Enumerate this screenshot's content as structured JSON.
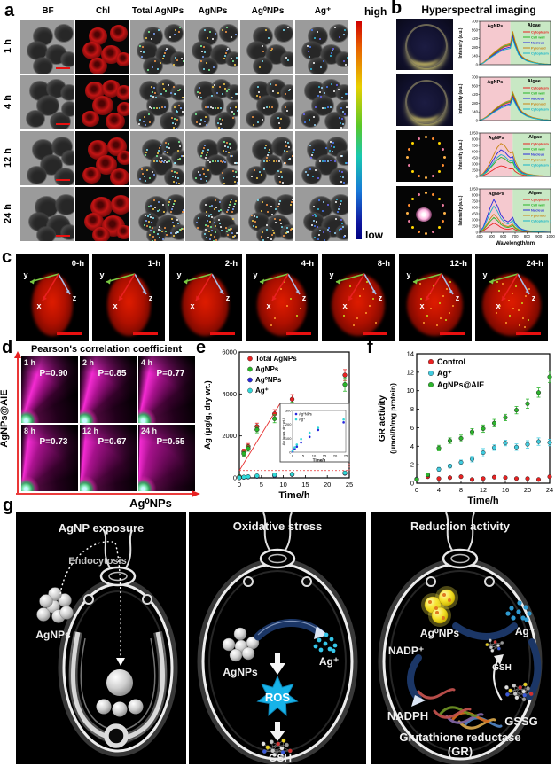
{
  "figure": {
    "panel_a": {
      "label": "a",
      "columns": [
        "BF",
        "Chl",
        "Total AgNPs",
        "AgNPs",
        "Ag⁰NPs",
        "Ag⁺"
      ],
      "rows": [
        "1 h",
        "4 h",
        "12 h",
        "24 h"
      ],
      "colorbar": {
        "high": "high",
        "low": "low"
      }
    },
    "panel_b": {
      "label": "b",
      "title": "Hyperspectral imaging"
    },
    "panel_c": {
      "label": "c",
      "times": [
        "0-h",
        "1-h",
        "2-h",
        "4-h",
        "8-h",
        "12-h",
        "24-h"
      ],
      "axis_x": "x",
      "axis_y": "y",
      "axis_z": "z"
    },
    "panel_d": {
      "label": "d",
      "title": "Pearson's correlation coefficient",
      "ylabel": "AgNPs@AIE",
      "xlabel": "Ag⁰NPs",
      "cells": [
        {
          "time": "1 h",
          "p": "P=0.90"
        },
        {
          "time": "2 h",
          "p": "P=0.85"
        },
        {
          "time": "4 h",
          "p": "P=0.77"
        },
        {
          "time": "8 h",
          "p": "P=0.73"
        },
        {
          "time": "12 h",
          "p": "P=0.67"
        },
        {
          "time": "24 h",
          "p": "P=0.55"
        }
      ]
    },
    "panel_e": {
      "label": "e"
    },
    "panel_f": {
      "label": "f"
    },
    "panel_g": {
      "label": "g",
      "cell_1": {
        "title": "AgNP exposure",
        "endocytosis": "Endocytosis",
        "agnps": "AgNPs"
      },
      "cell_2": {
        "title": "Oxidative stress",
        "agnps": "AgNPs",
        "ag_ion": "Ag⁺",
        "ros": "ROS",
        "gsh": "GSH"
      },
      "cell_3": {
        "title": "Reduction activity",
        "ag0nps": "Ag⁰NPs",
        "ag_ion": "Ag⁺",
        "nadp": "NADP⁺",
        "nadph": "NADPH",
        "gsh": "GSH",
        "gssg": "GSSG",
        "gr_line1": "Glutathione reductase",
        "gr_line2": "(GR)"
      }
    }
  },
  "chart_data": {
    "spectra": {
      "type": "line",
      "title": "Hyperspectral imaging",
      "ylabel": "Intensity (a.u.)",
      "xlabel": "Wavelength/nm",
      "xlim": [
        400,
        1000
      ],
      "xticks": [
        400,
        500,
        600,
        700,
        800,
        900,
        1000
      ],
      "region_labels": [
        "AgNPs",
        "Algae"
      ],
      "legend": [
        "Cytoplasm",
        "Cell wall",
        "Nucleus",
        "Pyrenoid",
        "Cytoplasm 1"
      ],
      "colors": {
        "Cytoplasm": "#e82222",
        "Cell wall": "#28b428",
        "Nucleus": "#2828dc",
        "Pyrenoid": "#c88414",
        "Cytoplasm 1": "#14b4c8"
      },
      "x": [
        400,
        430,
        460,
        490,
        520,
        550,
        580,
        610,
        640,
        660,
        680,
        700,
        730,
        760,
        800,
        850,
        900,
        950,
        1000
      ],
      "rows": [
        {
          "ylim": [
            0,
            700
          ],
          "yticks": [
            0,
            140,
            280,
            420,
            560,
            700
          ],
          "boundary_nm": 660,
          "series": {
            "Cytoplasm": [
              5,
              30,
              80,
              130,
              175,
              215,
              255,
              285,
              300,
              310,
              490,
              350,
              190,
              120,
              70,
              40,
              20,
              10,
              5
            ],
            "Cell wall": [
              5,
              32,
              84,
              137,
              184,
              226,
              268,
              299,
              315,
              326,
              515,
              368,
              200,
              126,
              74,
              42,
              21,
              11,
              5
            ],
            "Nucleus": [
              5,
              28,
              74,
              120,
              161,
              198,
              235,
              262,
              276,
              285,
              451,
              322,
              175,
              110,
              64,
              37,
              18,
              9,
              5
            ],
            "Pyrenoid": [
              6,
              33,
              88,
              143,
              193,
              237,
              281,
              314,
              330,
              341,
              539,
              385,
              209,
              132,
              77,
              44,
              22,
              11,
              6
            ],
            "Cytoplasm 1": [
              4,
              26,
              68,
              111,
              149,
              183,
              217,
              242,
              255,
              264,
              417,
              298,
              162,
              102,
              60,
              34,
              17,
              9,
              4
            ]
          }
        },
        {
          "ylim": [
            0,
            700
          ],
          "yticks": [
            0,
            140,
            280,
            420,
            560,
            700
          ],
          "boundary_nm": 660,
          "series": {
            "Cytoplasm": [
              5,
              25,
              60,
              105,
              155,
              195,
              235,
              265,
              285,
              295,
              415,
              330,
              200,
              130,
              80,
              45,
              25,
              12,
              5
            ],
            "Cell wall": [
              5,
              26,
              63,
              110,
              163,
              205,
              247,
              278,
              299,
              310,
              436,
              347,
              210,
              137,
              84,
              47,
              26,
              13,
              5
            ],
            "Nucleus": [
              5,
              23,
              55,
              97,
              143,
              179,
              216,
              244,
              262,
              271,
              382,
              304,
              184,
              120,
              74,
              41,
              23,
              11,
              5
            ],
            "Pyrenoid": [
              6,
              28,
              66,
              116,
              171,
              215,
              259,
              292,
              314,
              325,
              457,
              363,
              220,
              143,
              88,
              50,
              28,
              13,
              6
            ],
            "Cytoplasm 1": [
              4,
              21,
              51,
              89,
              132,
              166,
              200,
              225,
              242,
              251,
              353,
              281,
              170,
              111,
              68,
              38,
              21,
              10,
              4
            ]
          }
        },
        {
          "ylim": [
            0,
            1050
          ],
          "yticks": [
            0,
            150,
            300,
            450,
            600,
            750,
            900,
            1050
          ],
          "boundary_nm": 680,
          "series": {
            "Cytoplasm": [
              4,
              24,
              60,
              112,
              168,
              224,
              256,
              240,
              200,
              180,
              192,
              120,
              64,
              36,
              20,
              12,
              6,
              3,
              2
            ],
            "Cell wall": [
              7,
              43,
              108,
              202,
              302,
              403,
              461,
              432,
              360,
              324,
              346,
              216,
              115,
              65,
              36,
              22,
              11,
              6,
              4
            ],
            "Nucleus": [
              10,
              60,
              150,
              280,
              420,
              560,
              640,
              600,
              500,
              450,
              480,
              300,
              160,
              90,
              50,
              30,
              15,
              8,
              5
            ],
            "Pyrenoid": [
              13,
              75,
              188,
              350,
              525,
              700,
              800,
              750,
              625,
              563,
              600,
              375,
              200,
              113,
              63,
              38,
              19,
              10,
              6
            ],
            "Cytoplasm 1": [
              8,
              49,
              123,
              230,
              344,
              459,
              525,
              492,
              410,
              369,
              394,
              246,
              131,
              74,
              41,
              25,
              12,
              7,
              4
            ]
          }
        },
        {
          "ylim": [
            0,
            1050
          ],
          "yticks": [
            0,
            150,
            300,
            450,
            600,
            750,
            900,
            1050
          ],
          "boundary_nm": 680,
          "series": {
            "Cytoplasm": [
              6,
              34,
              98,
              168,
              221,
              179,
              118,
              84,
              70,
              84,
              101,
              62,
              34,
              20,
              11,
              7,
              3,
              2,
              1
            ],
            "Cell wall": [
              9,
              54,
              158,
              270,
              356,
              288,
              189,
              135,
              113,
              135,
              162,
              99,
              54,
              32,
              18,
              11,
              5,
              3,
              1
            ],
            "Nucleus": [
              20,
              120,
              350,
              600,
              790,
              640,
              420,
              300,
              250,
              300,
              360,
              220,
              120,
              70,
              40,
              25,
              12,
              6,
              3
            ],
            "Pyrenoid": [
              11,
              66,
              193,
              330,
              435,
              352,
              231,
              165,
              138,
              165,
              198,
              121,
              66,
              39,
              22,
              14,
              7,
              3,
              2
            ],
            "Cytoplasm 1": [
              16,
              96,
              280,
              480,
              632,
              512,
              336,
              240,
              200,
              240,
              288,
              176,
              96,
              56,
              32,
              20,
              10,
              5,
              2
            ]
          }
        }
      ]
    },
    "silver_uptake": {
      "type": "scatter",
      "ylabel": "Ag (μg/g, dry wt.)",
      "xlabel": "Time/h",
      "ylim": [
        0,
        6000
      ],
      "yticks": [
        0,
        2000,
        4000,
        6000
      ],
      "xlim": [
        0,
        25
      ],
      "xticks": [
        0,
        5,
        10,
        15,
        20,
        25
      ],
      "x": [
        0,
        1,
        2,
        4,
        8,
        12,
        24
      ],
      "series": [
        {
          "name": "Total AgNPs",
          "color": "#e82222",
          "values": [
            60,
            1250,
            1500,
            2450,
            3050,
            3750,
            4900
          ],
          "err": [
            40,
            120,
            140,
            160,
            200,
            220,
            260
          ]
        },
        {
          "name": "AgNPs",
          "color": "#28b428",
          "values": [
            50,
            1150,
            1400,
            2300,
            2820,
            3400,
            4450
          ],
          "err": [
            40,
            110,
            130,
            150,
            190,
            210,
            320
          ]
        },
        {
          "name": "Ag⁰NPs",
          "color": "#2828dc",
          "values": [
            5,
            25,
            40,
            70,
            110,
            160,
            215
          ],
          "err": [
            4,
            8,
            10,
            12,
            15,
            18,
            22
          ]
        },
        {
          "name": "Ag⁺",
          "color": "#30d8d8",
          "values": [
            10,
            35,
            55,
            95,
            140,
            175,
            235
          ],
          "err": [
            4,
            8,
            10,
            12,
            15,
            18,
            22
          ]
        }
      ],
      "inset": {
        "ylabel": "Ag (μg/g, dry wt.)",
        "xlabel": "Time/h",
        "ylim": [
          0,
          300
        ],
        "yticks": [
          0,
          100,
          200,
          300
        ],
        "xticks": [
          0,
          5,
          10,
          15,
          20,
          25
        ],
        "series": [
          "Ag⁰NPs",
          "Ag⁺"
        ]
      }
    },
    "gr_activity": {
      "type": "scatter",
      "ylabel": "GR activity (μmol/h/mg protein)",
      "ylabel_line1": "GR activity",
      "ylabel_line2": "(μmol/h/mg protein)",
      "xlabel": "Time/h",
      "ylim": [
        0,
        14
      ],
      "yticks": [
        0,
        2,
        4,
        6,
        8,
        10,
        12,
        14
      ],
      "xlim": [
        0,
        24
      ],
      "xticks": [
        0,
        4,
        8,
        12,
        16,
        20,
        24
      ],
      "x": [
        0,
        2,
        4,
        6,
        8,
        10,
        12,
        14,
        16,
        18,
        20,
        22,
        24
      ],
      "series": [
        {
          "name": "Control",
          "color": "#e82222",
          "values": [
            0.45,
            0.7,
            0.5,
            0.6,
            0.7,
            0.4,
            0.5,
            0.65,
            0.6,
            0.5,
            0.5,
            0.4,
            0.7
          ],
          "err": [
            0.12,
            0.12,
            0.1,
            0.12,
            0.12,
            0.1,
            0.1,
            0.12,
            0.12,
            0.1,
            0.1,
            0.1,
            0.12
          ]
        },
        {
          "name": "Ag⁺",
          "color": "#40cce0",
          "values": [
            0.45,
            0.9,
            1.5,
            1.85,
            2.25,
            2.6,
            3.3,
            3.85,
            4.35,
            3.9,
            4.2,
            4.5,
            4.4
          ],
          "err": [
            0.1,
            0.15,
            0.2,
            0.2,
            0.25,
            0.3,
            0.45,
            0.3,
            0.3,
            0.35,
            0.4,
            0.4,
            0.35
          ]
        },
        {
          "name": "AgNPs@AIE",
          "color": "#2db42d",
          "values": [
            0.4,
            0.9,
            3.8,
            4.6,
            4.85,
            5.55,
            5.9,
            6.5,
            7.1,
            7.9,
            8.6,
            9.8,
            11.5
          ],
          "err": [
            0.1,
            0.15,
            0.3,
            0.3,
            0.35,
            0.35,
            0.4,
            0.4,
            0.35,
            0.4,
            0.5,
            0.5,
            0.6
          ]
        }
      ]
    },
    "pearson": {
      "type": "scatter",
      "title": "Pearson's correlation coefficient",
      "x_axis": "Ag⁰NPs",
      "y_axis": "AgNPs@AIE",
      "times": [
        "1 h",
        "2 h",
        "4 h",
        "8 h",
        "12 h",
        "24 h"
      ],
      "p_values": [
        0.9,
        0.85,
        0.77,
        0.73,
        0.67,
        0.55
      ]
    }
  }
}
